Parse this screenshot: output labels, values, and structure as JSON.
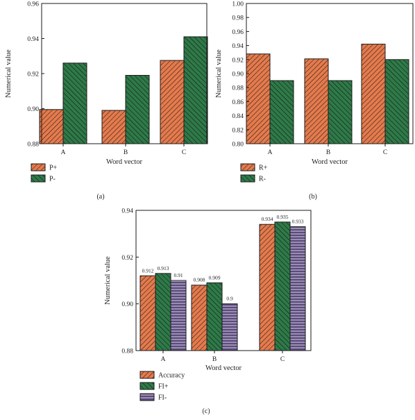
{
  "colors": {
    "orange": "#e57a4c",
    "green": "#2e7a48",
    "purple": "#5b4b7c",
    "stroke": "#1a1a1a"
  },
  "chart_data": [
    {
      "id": "a",
      "type": "bar",
      "panel_label": "(a)",
      "xlabel": "Word vector",
      "ylabel": "Numerical value",
      "categories": [
        "A",
        "B",
        "C"
      ],
      "ylim": [
        0.88,
        0.96
      ],
      "yticks": [
        "0.88",
        "0.90",
        "0.92",
        "0.94",
        "0.96"
      ],
      "ytick_values": [
        0.88,
        0.9,
        0.92,
        0.94,
        0.96
      ],
      "grid": false,
      "legend_position": "below-left",
      "series": [
        {
          "name": "P+",
          "color": "orange",
          "values": [
            0.8995,
            0.899,
            0.9275
          ]
        },
        {
          "name": "P-",
          "color": "green",
          "values": [
            0.926,
            0.919,
            0.941
          ]
        }
      ]
    },
    {
      "id": "b",
      "type": "bar",
      "panel_label": "(b)",
      "xlabel": "Word vector",
      "ylabel": "Numerical value",
      "categories": [
        "A",
        "B",
        "C"
      ],
      "ylim": [
        0.8,
        1.0
      ],
      "yticks": [
        "0.80",
        "0.82",
        "0.84",
        "0.86",
        "0.88",
        "0.90",
        "0.92",
        "0.94",
        "0.96",
        "0.98",
        "1.00"
      ],
      "ytick_values": [
        0.8,
        0.82,
        0.84,
        0.86,
        0.88,
        0.9,
        0.92,
        0.94,
        0.96,
        0.98,
        1.0
      ],
      "grid": false,
      "legend_position": "below-left",
      "series": [
        {
          "name": "R+",
          "color": "orange",
          "values": [
            0.928,
            0.921,
            0.942
          ]
        },
        {
          "name": "R-",
          "color": "green",
          "values": [
            0.89,
            0.89,
            0.92
          ]
        }
      ]
    },
    {
      "id": "c",
      "type": "bar",
      "panel_label": "(c)",
      "xlabel": "Word vector",
      "ylabel": "Numerical value",
      "categories": [
        "A",
        "B",
        "C"
      ],
      "ylim": [
        0.88,
        0.94
      ],
      "yticks": [
        "0.88",
        "0.90",
        "0.92",
        "0.94"
      ],
      "ytick_values": [
        0.88,
        0.9,
        0.92,
        0.94
      ],
      "grid": false,
      "legend_position": "below-left",
      "series": [
        {
          "name": "Accuracy",
          "color": "orange",
          "values": [
            0.912,
            0.908,
            0.934
          ],
          "labels": [
            "0.912",
            "0.908",
            "0.934"
          ]
        },
        {
          "name": "FI+",
          "color": "green",
          "values": [
            0.913,
            0.909,
            0.935
          ],
          "labels": [
            "0.913",
            "0.909",
            "0.935"
          ]
        },
        {
          "name": "FI-",
          "color": "purple",
          "values": [
            0.91,
            0.9,
            0.933
          ],
          "labels": [
            "0.91",
            "0.9",
            "0.933"
          ]
        }
      ]
    }
  ]
}
